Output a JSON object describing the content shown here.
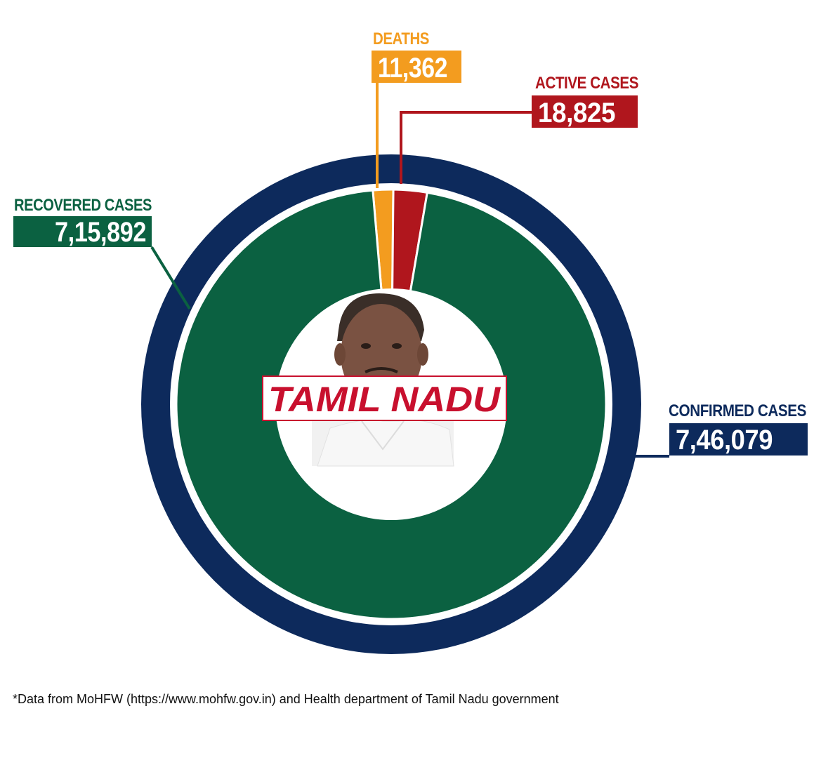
{
  "chart_data": {
    "type": "pie",
    "title": "TAMIL NADU",
    "colors": {
      "confirmed": "#0d2a5c",
      "recovered": "#0b6141",
      "deaths": "#f39c1f",
      "active": "#b0161d",
      "title": "#c8102e"
    },
    "outer_ring": {
      "label": "CONFIRMED CASES",
      "value_text": "7,46,079",
      "value": 746079
    },
    "slices": [
      {
        "key": "recovered",
        "label": "RECOVERED CASES",
        "value_text": "7,15,892",
        "value": 715892
      },
      {
        "key": "deaths",
        "label": "DEATHS",
        "value_text": "11,362",
        "value": 11362
      },
      {
        "key": "active",
        "label": "ACTIVE CASES",
        "value_text": "18,825",
        "value": 18825
      }
    ]
  },
  "footnote": "*Data from MoHFW (https://www.mohfw.gov.in) and Health department of Tamil Nadu government"
}
